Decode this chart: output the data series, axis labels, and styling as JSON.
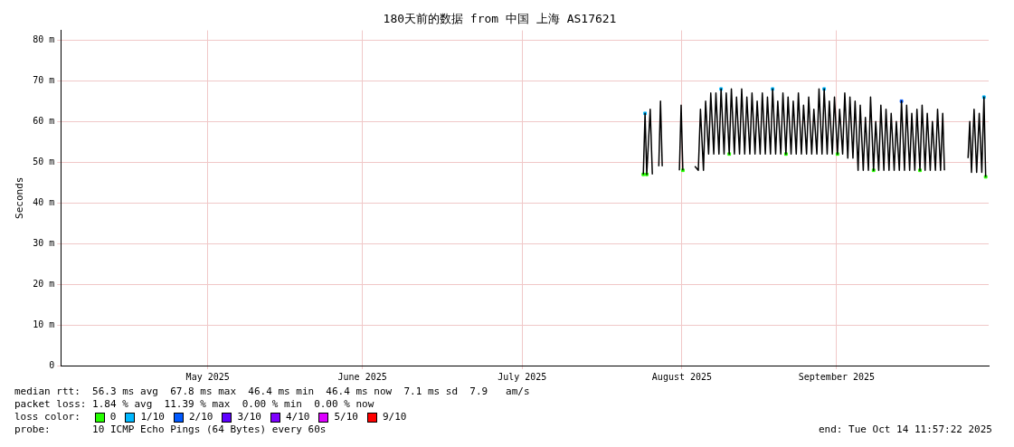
{
  "chart_data": {
    "type": "line",
    "title": "180天前的数据 from 中国 上海 AS17621",
    "ylabel": "Seconds",
    "legend_title": "loss color:",
    "legend": "bottom",
    "grid": true,
    "marker": "none",
    "xlim": [
      "2025-04-17T12:00",
      "2025-10-14T11:57"
    ],
    "xticks": [
      {
        "value": "2025-05-16",
        "label": "May 2025"
      },
      {
        "value": "2025-06-15",
        "label": "June 2025"
      },
      {
        "value": "2025-07-16",
        "label": "July 2025"
      },
      {
        "value": "2025-08-16",
        "label": "August 2025"
      },
      {
        "value": "2025-09-15",
        "label": "September 2025"
      }
    ],
    "ylim": [
      0,
      82.4
    ],
    "yticks": [
      0,
      {
        "value": 10,
        "label": "10 m"
      },
      {
        "value": 20,
        "label": "20 m"
      },
      {
        "value": 30,
        "label": "30 m"
      },
      {
        "value": 40,
        "label": "40 m"
      },
      {
        "value": 50,
        "label": "50 m"
      },
      {
        "value": 60,
        "label": "60 m"
      },
      {
        "value": 70,
        "label": "70 m"
      },
      {
        "value": 80,
        "label": "80 m"
      }
    ],
    "annotations": [
      "median rtt:  56.3 ms avg  67.8 ms max  46.4 ms min  46.4 ms now  7.1 ms sd  7.9   am/s",
      "packet loss: 1.84 % avg  11.39 % max  0.00 % min  0.00 % now",
      "probe:       10 ICMP Echo Pings (64 Bytes) every 60s",
      "end: Tue Oct 14 11:57:22 2025"
    ],
    "series": [
      {
        "color": "#000000",
        "x": [
          "2025-08-08T12:00",
          "2025-08-08T20:00",
          "2025-08-09T04:00",
          "2025-08-09T20:00",
          "2025-08-10T06:00",
          "2025-08-11T00:00",
          "2025-08-11T12:00",
          "2025-08-11T20:00",
          "2025-08-12T04:00",
          "2025-08-13T00:00",
          "2025-08-15T12:00",
          "2025-08-15T20:00",
          "2025-08-16T04:00",
          "2025-08-17T00:00",
          "2025-08-18T12:00",
          "2025-08-19T04:00",
          "2025-08-19T14:00",
          "2025-08-20T04:00",
          "2025-08-20T14:00",
          "2025-08-21T04:00",
          "2025-08-21T14:00",
          "2025-08-22T04:00",
          "2025-08-22T14:00",
          "2025-08-23T04:00",
          "2025-08-23T14:00",
          "2025-08-24T04:00",
          "2025-08-24T14:00",
          "2025-08-25T04:00",
          "2025-08-25T14:00",
          "2025-08-26T04:00",
          "2025-08-26T14:00",
          "2025-08-27T04:00",
          "2025-08-27T14:00",
          "2025-08-28T04:00",
          "2025-08-28T14:00",
          "2025-08-29T04:00",
          "2025-08-29T14:00",
          "2025-08-30T04:00",
          "2025-08-30T14:00",
          "2025-08-31T04:00",
          "2025-08-31T14:00",
          "2025-09-01T04:00",
          "2025-09-01T14:00",
          "2025-09-02T04:00",
          "2025-09-02T14:00",
          "2025-09-03T04:00",
          "2025-09-03T14:00",
          "2025-09-04T04:00",
          "2025-09-04T14:00",
          "2025-09-05T04:00",
          "2025-09-05T14:00",
          "2025-09-06T04:00",
          "2025-09-06T14:00",
          "2025-09-07T04:00",
          "2025-09-07T14:00",
          "2025-09-08T04:00",
          "2025-09-08T14:00",
          "2025-09-09T04:00",
          "2025-09-09T14:00",
          "2025-09-10T04:00",
          "2025-09-10T14:00",
          "2025-09-11T04:00",
          "2025-09-11T14:00",
          "2025-09-12T04:00",
          "2025-09-12T14:00",
          "2025-09-13T04:00",
          "2025-09-13T14:00",
          "2025-09-14T04:00",
          "2025-09-14T14:00",
          "2025-09-15T04:00",
          "2025-09-15T14:00",
          "2025-09-16T04:00",
          "2025-09-16T14:00",
          "2025-09-17T04:00",
          "2025-09-17T14:00",
          "2025-09-18T04:00",
          "2025-09-18T14:00",
          "2025-09-19T04:00",
          "2025-09-19T14:00",
          "2025-09-20T04:00",
          "2025-09-20T14:00",
          "2025-09-21T04:00",
          "2025-09-21T14:00",
          "2025-09-22T04:00",
          "2025-09-22T14:00",
          "2025-09-23T04:00",
          "2025-09-23T14:00",
          "2025-09-24T04:00",
          "2025-09-24T14:00",
          "2025-09-25T04:00",
          "2025-09-25T14:00",
          "2025-09-26T04:00",
          "2025-09-26T14:00",
          "2025-09-27T04:00",
          "2025-09-27T14:00",
          "2025-09-28T04:00",
          "2025-09-28T14:00",
          "2025-09-29T04:00",
          "2025-09-29T14:00",
          "2025-09-30T04:00",
          "2025-09-30T14:00",
          "2025-10-01T04:00",
          "2025-10-01T14:00",
          "2025-10-02T04:00",
          "2025-10-02T14:00",
          "2025-10-03T04:00",
          "2025-10-03T14:00",
          "2025-10-04T04:00",
          "2025-10-04T14:00",
          "2025-10-05T04:00",
          "2025-10-05T14:00",
          "2025-10-05T22:00",
          "2025-10-07T00:00",
          "2025-10-10T12:00",
          "2025-10-10T20:00",
          "2025-10-11T04:00",
          "2025-10-11T16:00",
          "2025-10-12T04:00",
          "2025-10-12T16:00",
          "2025-10-13T04:00",
          "2025-10-13T14:00",
          "2025-10-13T22:00"
        ],
        "values": [
          47,
          62,
          47,
          63,
          47,
          null,
          49,
          65,
          49,
          null,
          48,
          64,
          48,
          null,
          49,
          48,
          63,
          48,
          65,
          52,
          67,
          52,
          67,
          52,
          68,
          52,
          67,
          52,
          68,
          52,
          66,
          52,
          68,
          52,
          66,
          52,
          67,
          52,
          65,
          52,
          67,
          52,
          66,
          52,
          68,
          52,
          65,
          52,
          67,
          52,
          66,
          52,
          65,
          52,
          67,
          52,
          64,
          52,
          66,
          52,
          63,
          52,
          68,
          52,
          68,
          52,
          65,
          52,
          66,
          52,
          63,
          52,
          67,
          51,
          66,
          51,
          65,
          48,
          64,
          48,
          61,
          48,
          66,
          48,
          60,
          48,
          64,
          48,
          63,
          48,
          62,
          48,
          60,
          48,
          65,
          48,
          64,
          48,
          62,
          48,
          63,
          48,
          64,
          48,
          62,
          48,
          60,
          48,
          63,
          48,
          62,
          48,
          null,
          51,
          60,
          47.5,
          63,
          47.5,
          62,
          47.5,
          66,
          46.4
        ]
      },
      {
        "type": "scatter",
        "name": "0",
        "color": "#26ff00",
        "marker": "square",
        "x": [
          "2025-08-08T12:00",
          "2025-08-09T04:00",
          "2025-08-16T04:00",
          "2025-08-25T04:00",
          "2025-09-05T04:00",
          "2025-09-15T04:00",
          "2025-09-22T04:00",
          "2025-10-01T04:00",
          "2025-10-13T22:00"
        ],
        "values": [
          47,
          47,
          48,
          52,
          52,
          52,
          48,
          48,
          46.4
        ]
      },
      {
        "type": "scatter",
        "name": "1/10",
        "color": "#00b8ff",
        "marker": "square",
        "x": [
          "2025-08-08T20:00",
          "2025-08-23T14:00",
          "2025-09-02T14:00",
          "2025-09-12T14:00",
          "2025-10-13T14:00"
        ],
        "values": [
          62,
          68,
          68,
          68,
          66
        ]
      },
      {
        "type": "scatter",
        "name": "2/10",
        "color": "#0059ff",
        "marker": "square",
        "x": [
          "2025-09-27T14:00"
        ],
        "values": [
          65
        ]
      },
      {
        "type": "scatter",
        "name": "3/10",
        "color": "#5e00ff",
        "marker": "square"
      },
      {
        "type": "scatter",
        "name": "4/10",
        "color": "#7e00ff",
        "marker": "square"
      },
      {
        "type": "scatter",
        "name": "5/10",
        "color": "#dd00ff",
        "marker": "square"
      },
      {
        "type": "scatter",
        "name": "9/10",
        "color": "#ff0000",
        "marker": "square"
      }
    ]
  }
}
